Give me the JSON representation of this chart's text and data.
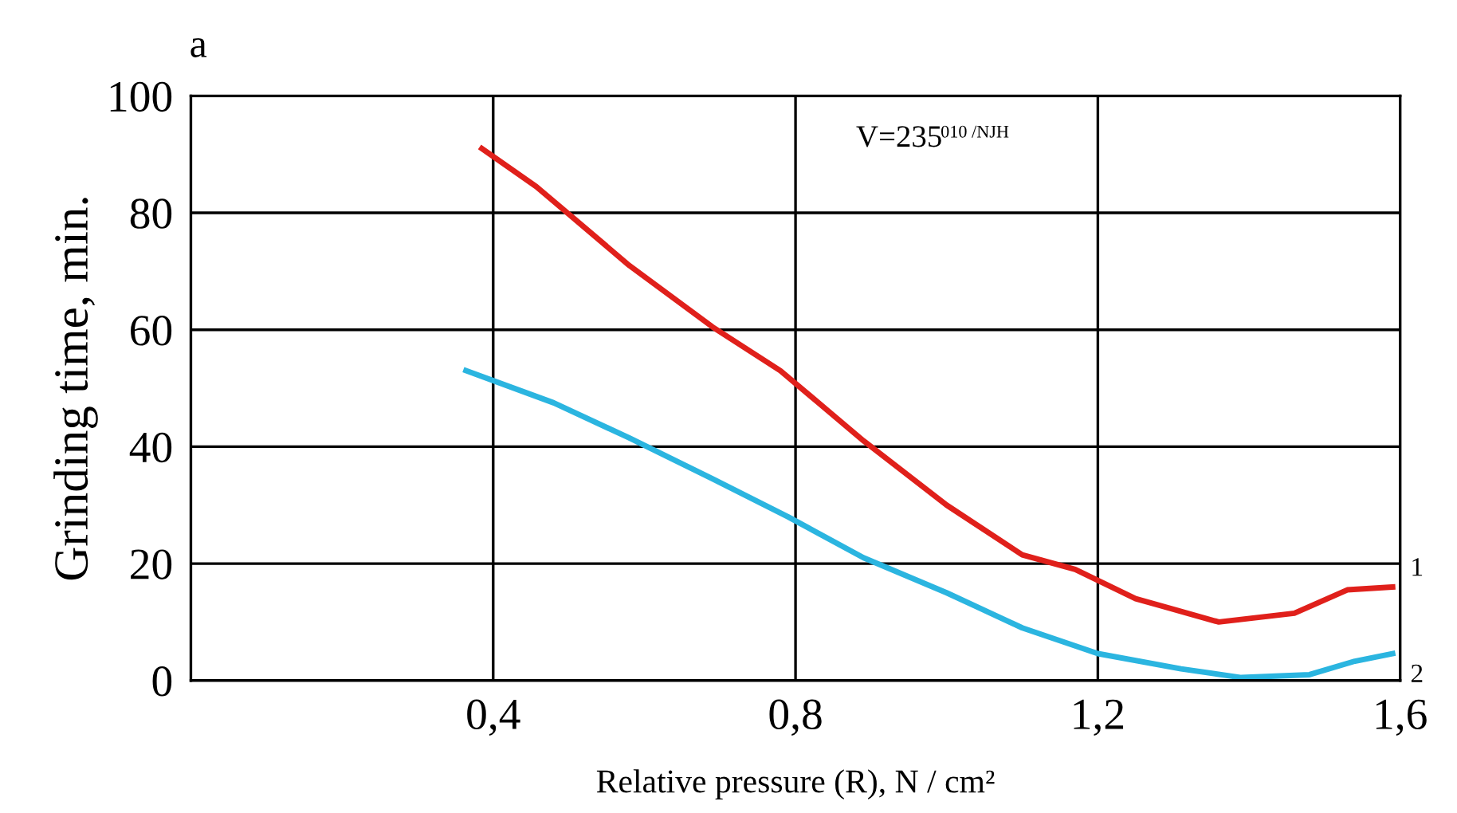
{
  "chart_data": {
    "type": "line",
    "title": "a",
    "xlabel": "Relative pressure (R), N / cm²",
    "ylabel": "Grinding time, min.",
    "annotations": [
      "V=235",
      "010 /NJH"
    ],
    "xlim": [
      0,
      1.6
    ],
    "ylim": [
      0,
      100
    ],
    "xticks": [
      {
        "value": 0.4,
        "label": "0,4"
      },
      {
        "value": 0.8,
        "label": "0,8"
      },
      {
        "value": 1.2,
        "label": "1,2"
      },
      {
        "value": 1.6,
        "label": "1,6"
      }
    ],
    "yticks": [
      0,
      20,
      40,
      60,
      80,
      100
    ],
    "grid": true,
    "marker": "none",
    "line_style": "solid",
    "series": [
      {
        "name": "1",
        "color": "#e0201b",
        "x": [
          0.385,
          0.457,
          0.58,
          0.69,
          0.78,
          0.89,
          1.0,
          1.1,
          1.17,
          1.25,
          1.36,
          1.46,
          1.53,
          1.59
        ],
        "values": [
          91,
          84.5,
          71,
          60.5,
          53,
          41,
          30,
          21.5,
          19,
          14,
          10,
          11.5,
          15.5,
          16
        ]
      },
      {
        "name": "2",
        "color": "#2bb5e0",
        "x": [
          0.364,
          0.48,
          0.58,
          0.69,
          0.79,
          0.89,
          1.0,
          1.1,
          1.2,
          1.31,
          1.39,
          1.48,
          1.54,
          1.59
        ],
        "values": [
          53,
          47.5,
          41.5,
          34.5,
          28,
          21,
          15,
          9,
          4.6,
          2,
          0.5,
          1,
          3.3,
          4.6
        ]
      }
    ]
  }
}
